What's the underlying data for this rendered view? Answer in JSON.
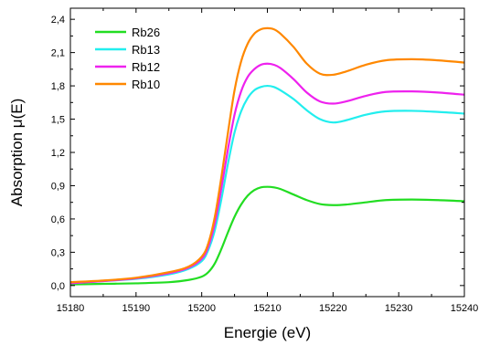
{
  "chart_data": {
    "type": "line",
    "title": "",
    "xlabel": "Energie (eV)",
    "ylabel": "Absorption μ(E)",
    "xlim": [
      15180,
      15240
    ],
    "ylim": [
      -0.1,
      2.5
    ],
    "x_ticks": [
      15180,
      15190,
      15200,
      15210,
      15220,
      15230,
      15240
    ],
    "x_tick_labels": [
      "15180",
      "15190",
      "15200",
      "15210",
      "15220",
      "15230",
      "15240"
    ],
    "y_ticks": [
      0.0,
      0.3,
      0.6,
      0.9,
      1.2,
      1.5,
      1.8,
      2.1,
      2.4
    ],
    "y_tick_labels": [
      "0,0",
      "0,3",
      "0,6",
      "0,9",
      "1,2",
      "1,5",
      "1,8",
      "2,1",
      "2,4"
    ],
    "grid": false,
    "legend_position": "top-left",
    "x": [
      15180,
      15185,
      15190,
      15195,
      15198,
      15200,
      15201,
      15202,
      15203,
      15204,
      15205,
      15206,
      15207,
      15208,
      15209,
      15210,
      15211,
      15212,
      15214,
      15216,
      15218,
      15220,
      15222,
      15225,
      15228,
      15232,
      15236,
      15240
    ],
    "series": [
      {
        "name": "Rb26",
        "color": "#22dd22",
        "values": [
          0.01,
          0.015,
          0.02,
          0.03,
          0.05,
          0.08,
          0.12,
          0.2,
          0.33,
          0.48,
          0.62,
          0.73,
          0.81,
          0.86,
          0.885,
          0.89,
          0.885,
          0.87,
          0.82,
          0.77,
          0.735,
          0.725,
          0.73,
          0.75,
          0.77,
          0.775,
          0.77,
          0.76
        ]
      },
      {
        "name": "Rb13",
        "color": "#22eeee",
        "values": [
          0.02,
          0.04,
          0.06,
          0.1,
          0.15,
          0.22,
          0.32,
          0.5,
          0.78,
          1.1,
          1.38,
          1.57,
          1.69,
          1.76,
          1.79,
          1.8,
          1.79,
          1.76,
          1.68,
          1.58,
          1.5,
          1.47,
          1.49,
          1.54,
          1.57,
          1.575,
          1.565,
          1.55
        ]
      },
      {
        "name": "Rb12",
        "color": "#ee22ee",
        "values": [
          0.02,
          0.04,
          0.065,
          0.11,
          0.16,
          0.24,
          0.35,
          0.56,
          0.88,
          1.23,
          1.54,
          1.75,
          1.88,
          1.95,
          1.99,
          2.0,
          1.99,
          1.96,
          1.86,
          1.74,
          1.66,
          1.64,
          1.66,
          1.71,
          1.745,
          1.75,
          1.74,
          1.72
        ]
      },
      {
        "name": "Rb10",
        "color": "#ff8800",
        "values": [
          0.03,
          0.045,
          0.07,
          0.12,
          0.17,
          0.26,
          0.38,
          0.62,
          0.98,
          1.38,
          1.76,
          2.02,
          2.18,
          2.27,
          2.31,
          2.32,
          2.31,
          2.27,
          2.15,
          2.0,
          1.91,
          1.9,
          1.93,
          1.99,
          2.03,
          2.04,
          2.03,
          2.01
        ]
      }
    ]
  }
}
